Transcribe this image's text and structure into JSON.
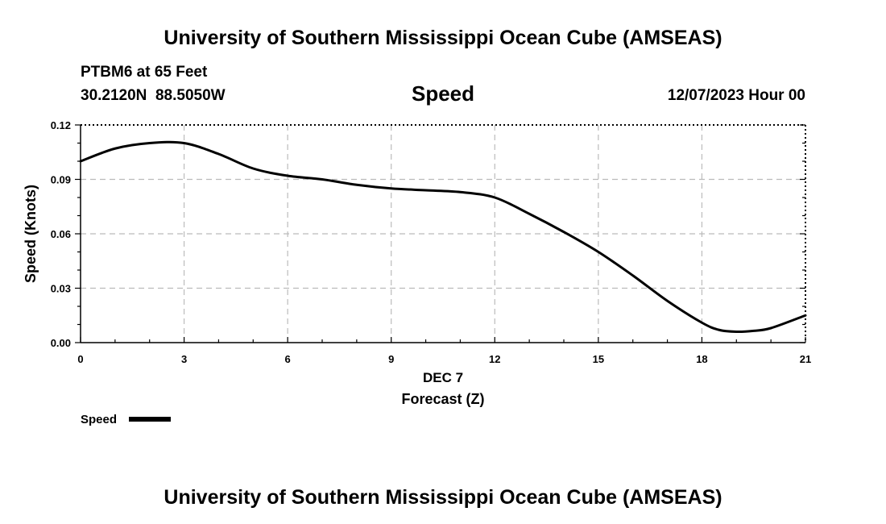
{
  "header": {
    "title": "University of Southern Mississippi Ocean Cube (AMSEAS)",
    "footer_title": "University of Southern Mississippi Ocean Cube (AMSEAS)",
    "station": "PTBM6 at 65 Feet",
    "coords": "30.2120N  88.5050W",
    "datetime": "12/07/2023 Hour 00"
  },
  "chart_data": {
    "type": "line",
    "title": "Speed",
    "xlabel": "Forecast (Z)",
    "xlabel_date": "DEC 7",
    "ylabel": "Speed (Knots)",
    "xlim": [
      0,
      21
    ],
    "ylim": [
      0,
      0.12
    ],
    "xticks": [
      0,
      3,
      6,
      9,
      12,
      15,
      18,
      21
    ],
    "xtick_labels": [
      "0",
      "3",
      "6",
      "9",
      "12",
      "15",
      "18",
      "21"
    ],
    "yticks": [
      0,
      0.03,
      0.06,
      0.09,
      0.12
    ],
    "ytick_labels": [
      "0.00",
      "0.03",
      "0.06",
      "0.09",
      "0.12"
    ],
    "grid": true,
    "legend": "bottom-left",
    "series": [
      {
        "name": "Speed",
        "color": "#000000",
        "x": [
          0,
          1,
          2,
          3,
          4,
          5,
          6,
          7,
          8,
          9,
          10,
          11,
          12,
          13,
          14,
          15,
          16,
          17,
          18,
          18.5,
          19,
          19.5,
          20,
          21
        ],
        "values": [
          0.1,
          0.107,
          0.11,
          0.11,
          0.104,
          0.096,
          0.092,
          0.09,
          0.087,
          0.085,
          0.084,
          0.083,
          0.08,
          0.071,
          0.061,
          0.05,
          0.037,
          0.023,
          0.011,
          0.007,
          0.006,
          0.0065,
          0.008,
          0.015
        ]
      }
    ]
  }
}
